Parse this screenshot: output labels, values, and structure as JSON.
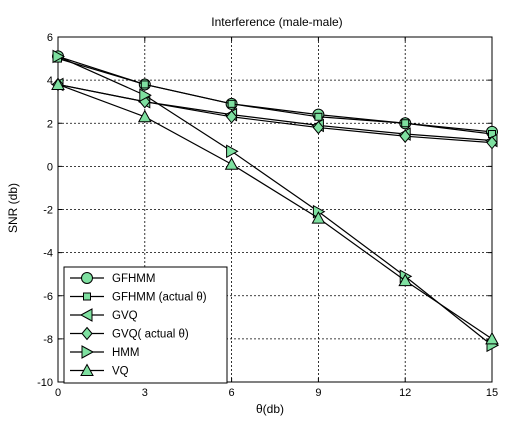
{
  "chart_data": {
    "type": "line",
    "title": "Interference (male-male)",
    "xlabel": "θ(db)",
    "ylabel": "SNR (db)",
    "xlim": [
      0,
      15
    ],
    "ylim": [
      -10,
      6
    ],
    "xticks": [
      0,
      3,
      6,
      9,
      12,
      15
    ],
    "yticks": [
      -10,
      -8,
      -6,
      -4,
      -2,
      0,
      2,
      4,
      6
    ],
    "grid": true,
    "legend_position": "bottom-left",
    "marker_fill": "#7ee0a0",
    "line_color": "#000000",
    "x": [
      0,
      3,
      6,
      9,
      12,
      15
    ],
    "series": [
      {
        "name": "GFHMM",
        "marker": "circle",
        "values": [
          5.1,
          3.8,
          2.9,
          2.4,
          2.0,
          1.6
        ]
      },
      {
        "name": "GFHMM (actual θ)",
        "marker": "square",
        "values": [
          5.0,
          3.8,
          2.9,
          2.3,
          2.0,
          1.5
        ]
      },
      {
        "name": "GVQ",
        "marker": "triangle-left",
        "values": [
          3.8,
          3.0,
          2.4,
          1.9,
          1.5,
          1.2
        ]
      },
      {
        "name": "GVQ( actual θ)",
        "marker": "diamond",
        "values": [
          3.8,
          3.0,
          2.3,
          1.8,
          1.4,
          1.1
        ]
      },
      {
        "name": "HMM",
        "marker": "triangle-right",
        "values": [
          5.1,
          3.3,
          0.7,
          -2.1,
          -5.1,
          -8.3
        ]
      },
      {
        "name": "VQ",
        "marker": "triangle-up",
        "values": [
          3.8,
          2.3,
          0.1,
          -2.4,
          -5.3,
          -8.0
        ]
      }
    ]
  }
}
